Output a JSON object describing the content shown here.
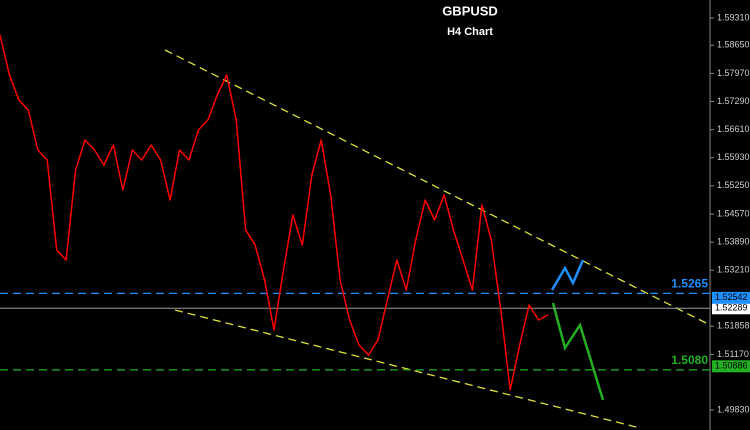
{
  "chart_data": {
    "type": "line",
    "title": "GBPUSD",
    "subtitle": "H4 Chart",
    "color": "#ff0000",
    "values": [
      1.58899,
      1.57932,
      1.57327,
      1.57085,
      1.56118,
      1.55876,
      1.53699,
      1.53458,
      1.55634,
      1.5636,
      1.56118,
      1.55755,
      1.56239,
      1.5515,
      1.56118,
      1.55876,
      1.56239,
      1.55876,
      1.54909,
      1.56118,
      1.55876,
      1.56601,
      1.56843,
      1.57448,
      1.57932,
      1.56843,
      1.54183,
      1.5382,
      1.52974,
      1.51765,
      1.53216,
      1.54546,
      1.5382,
      1.55513,
      1.5636,
      1.55029,
      1.52974,
      1.52006,
      1.51402,
      1.5116,
      1.51523,
      1.5249,
      1.53458,
      1.52732,
      1.53941,
      1.54909,
      1.54425,
      1.55029,
      1.54183,
      1.53458,
      1.52732,
      1.54788,
      1.53941,
      1.52248,
      1.50314,
      1.51402,
      1.52369,
      1.52006,
      1.52127
    ],
    "ylim": [
      1.49346,
      1.59745
    ],
    "yticks": [
      {
        "value": 1.5931,
        "label": "1.59310"
      },
      {
        "value": 1.5865,
        "label": "1.58650"
      },
      {
        "value": 1.5797,
        "label": "1.57970"
      },
      {
        "value": 1.5729,
        "label": "1.57290"
      },
      {
        "value": 1.5661,
        "label": "1.56610"
      },
      {
        "value": 1.5593,
        "label": "1.55930"
      },
      {
        "value": 1.5525,
        "label": "1.55250"
      },
      {
        "value": 1.5457,
        "label": "1.54570"
      },
      {
        "value": 1.5389,
        "label": "1.53890"
      },
      {
        "value": 1.5321,
        "label": "1.53210"
      },
      {
        "value": 1.51858,
        "label": "1.51858"
      },
      {
        "value": 1.5117,
        "label": "1.51170"
      },
      {
        "value": 1.4983,
        "label": "1.49830"
      }
    ],
    "levels": [
      {
        "value": 1.5265,
        "label": "1.5265",
        "color": "#1e90ff",
        "tag": {
          "value": 1.52542,
          "label": "1.52542"
        }
      },
      {
        "value": 1.508,
        "label": "1.5080",
        "color": "#22b022",
        "tag": {
          "value": 1.50886,
          "label": "1.50886"
        }
      }
    ],
    "current_price": {
      "value": 1.52289,
      "label": "1.52289"
    }
  }
}
